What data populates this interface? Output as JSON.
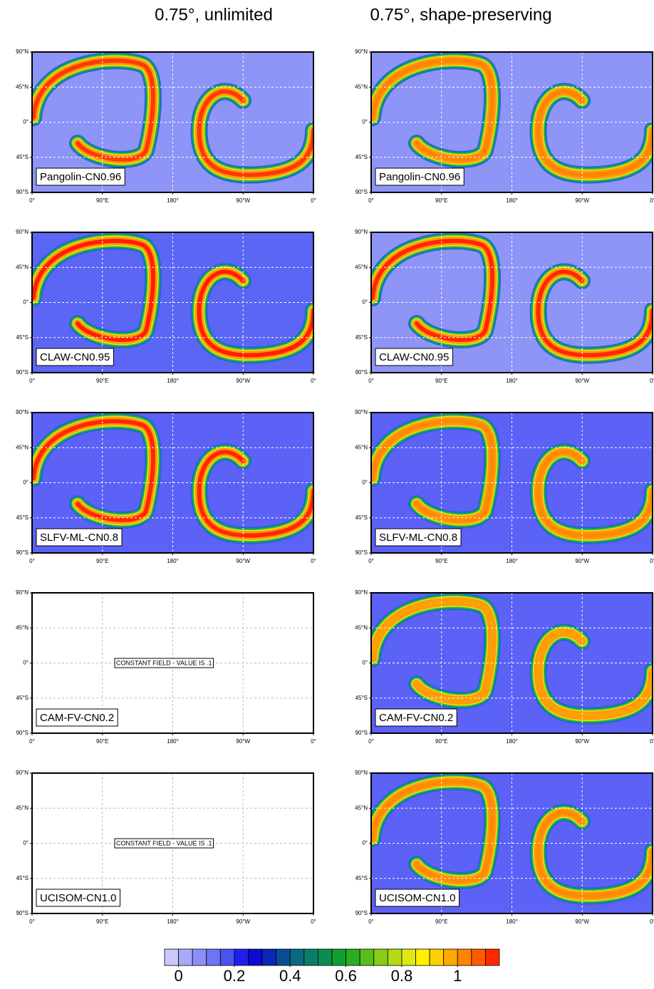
{
  "chart_data": {
    "type": "map-panels",
    "columns": [
      {
        "title": "0.75°, unlimited",
        "panels": [
          {
            "label": "Pangolin-CN0.96",
            "background": "#8e95f7",
            "core": "#ff3a00"
          },
          {
            "label": "CLAW-CN0.95",
            "background": "#5c66f4",
            "core": "#ff2000"
          },
          {
            "label": "SLFV-ML-CN0.8",
            "background": "#5c62f5",
            "core": "#ff2800"
          },
          {
            "label": "CAM-FV-CN0.2",
            "note": "CONSTANT FIELD - VALUE IS .1"
          },
          {
            "label": "UCISOM-CN1.0",
            "note": "CONSTANT FIELD - VALUE IS .1"
          }
        ]
      },
      {
        "title": "0.75°, shape-preserving",
        "panels": [
          {
            "label": "Pangolin-CN0.96",
            "background": "#8e95f7",
            "core": "#ff8400"
          },
          {
            "label": "CLAW-CN0.95",
            "background": "#8e95f7",
            "core": "#ff2800"
          },
          {
            "label": "SLFV-ML-CN0.8",
            "background": "#5c62f5",
            "core": "#ff8a00"
          },
          {
            "label": "CAM-FV-CN0.2",
            "background": "#5c62f5",
            "core": "#ffa000"
          },
          {
            "label": "UCISOM-CN1.0",
            "background": "#5c62f5",
            "core": "#ff8a00"
          }
        ]
      }
    ],
    "xticks": [
      "0°",
      "90°E",
      "180°",
      "90°W",
      "0°"
    ],
    "yticks": [
      "90°N",
      "45°N",
      "0°",
      "45°S",
      "90°S"
    ],
    "colorbar": {
      "lim": [
        -0.05,
        1.15
      ],
      "ticks": [
        0,
        0.2,
        0.4,
        0.6,
        0.8,
        1
      ],
      "colors": [
        "#c8c8fa",
        "#a8aaf8",
        "#8c90f6",
        "#6e74f4",
        "#4a52f2",
        "#1e1ef0",
        "#0a0ad0",
        "#0a28b4",
        "#0a4c98",
        "#0a6a80",
        "#0a7e6e",
        "#0a8e50",
        "#109e30",
        "#28ae20",
        "#58be20",
        "#88cc18",
        "#b4da18",
        "#dce810",
        "#fff000",
        "#ffd000",
        "#ffa800",
        "#ff8400",
        "#ff5a00",
        "#ff2800"
      ]
    }
  }
}
